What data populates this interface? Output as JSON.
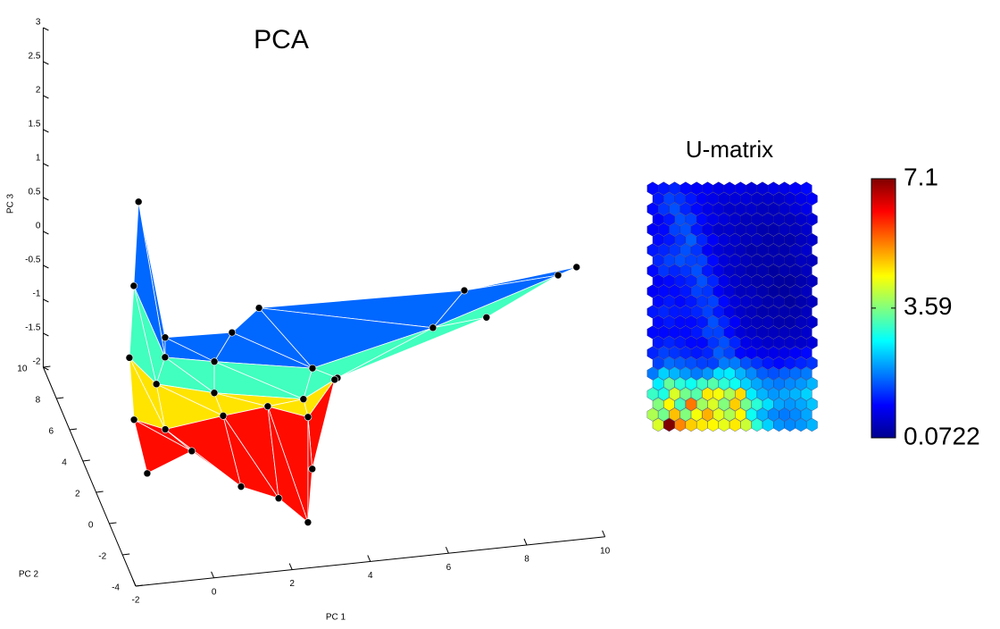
{
  "chart_data": [
    {
      "type": "mesh3d",
      "title": "PCA",
      "xlabel": "PC 1",
      "ylabel": "PC 2",
      "zlabel": "PC 3",
      "xlim": [
        -2,
        10
      ],
      "ylim": [
        -4,
        10
      ],
      "zlim": [
        -2,
        3
      ],
      "xticks": [
        -2,
        0,
        2,
        4,
        6,
        8,
        10
      ],
      "yticks": [
        -4,
        -2,
        0,
        2,
        4,
        6,
        8,
        10
      ],
      "zticks": [
        -2,
        -1.5,
        -1,
        -0.5,
        0,
        0.5,
        1,
        1.5,
        2,
        2.5,
        3
      ],
      "colormap": "jet",
      "nodes": {
        "pc1": [
          [
            0.1,
            0.78,
            2.49,
            3.18,
            8.43,
            11.3
          ],
          [
            -0.36,
            0.44,
            1.7,
            4.21,
            7.29,
            10.49
          ],
          [
            -0.81,
            -0.12,
            1.36,
            3.64,
            4.51,
            8.32
          ],
          [
            -1.03,
            -0.23,
            1.25,
            2.39,
            3.42,
            4.1
          ],
          [
            -1.03,
            0.11,
            1.37,
            2.33,
            3.08,
            3.19
          ]
        ],
        "pc2": [
          [
            8,
            8,
            8,
            8,
            8,
            8
          ],
          [
            6,
            6,
            6,
            6,
            6,
            6
          ],
          [
            4,
            4,
            4,
            4,
            4,
            4
          ],
          [
            2,
            2,
            2,
            2,
            2,
            2
          ],
          [
            0,
            0,
            0,
            0,
            0,
            0
          ]
        ],
        "pc3": [
          [
            0.77,
            -1.27,
            -1.3,
            -0.98,
            -1.04,
            -0.87
          ],
          [
            0.02,
            -1.08,
            -1.22,
            -1.47,
            -1.06,
            -0.48
          ],
          [
            -0.55,
            -0.98,
            -1.2,
            -1.43,
            -1.17,
            -0.51
          ],
          [
            -0.99,
            -1.18,
            -1.07,
            -1.0,
            -1.22,
            -0.71
          ],
          [
            -1.32,
            -1.06,
            -1.66,
            -1.89,
            -2.29,
            -1.51
          ]
        ]
      }
    },
    {
      "type": "hexmap",
      "title": "U-matrix",
      "colormap": "jet",
      "clim": [
        0.0722,
        7.1
      ],
      "cticks": [
        0.0722,
        3.59,
        7.1
      ],
      "values": [
        [
          1.0,
          1.1,
          1.2,
          1.0,
          0.9,
          0.9,
          0.8,
          0.8,
          0.8,
          0.7,
          0.7,
          0.8,
          0.8,
          0.9,
          1.0
        ],
        [
          1.1,
          1.4,
          1.3,
          1.1,
          0.9,
          0.8,
          0.7,
          0.7,
          0.7,
          0.6,
          0.6,
          0.6,
          0.7,
          0.8,
          0.9
        ],
        [
          1.0,
          1.3,
          1.5,
          1.2,
          1.0,
          0.8,
          0.7,
          0.6,
          0.6,
          0.6,
          0.5,
          0.5,
          0.6,
          0.7,
          0.8
        ],
        [
          0.9,
          1.1,
          1.5,
          1.4,
          1.0,
          0.8,
          0.7,
          0.6,
          0.5,
          0.5,
          0.5,
          0.5,
          0.5,
          0.6,
          0.7
        ],
        [
          0.9,
          1.0,
          1.4,
          1.5,
          1.1,
          0.8,
          0.6,
          0.6,
          0.5,
          0.5,
          0.4,
          0.4,
          0.5,
          0.5,
          0.6
        ],
        [
          1.0,
          1.1,
          1.3,
          1.6,
          1.2,
          0.9,
          0.7,
          0.6,
          0.5,
          0.5,
          0.4,
          0.4,
          0.4,
          0.5,
          0.6
        ],
        [
          1.1,
          1.2,
          1.3,
          1.5,
          1.3,
          0.9,
          0.7,
          0.6,
          0.5,
          0.4,
          0.4,
          0.4,
          0.4,
          0.5,
          0.6
        ],
        [
          1.2,
          1.4,
          1.5,
          1.4,
          1.4,
          1.0,
          0.7,
          0.6,
          0.5,
          0.4,
          0.4,
          0.4,
          0.4,
          0.5,
          0.5
        ],
        [
          1.0,
          1.3,
          1.2,
          1.3,
          1.5,
          1.1,
          0.8,
          0.6,
          0.5,
          0.4,
          0.4,
          0.3,
          0.4,
          0.4,
          0.5
        ],
        [
          0.9,
          1.0,
          1.1,
          1.2,
          1.5,
          1.2,
          0.8,
          0.6,
          0.5,
          0.4,
          0.4,
          0.3,
          0.3,
          0.4,
          0.5
        ],
        [
          0.9,
          1.0,
          1.0,
          1.1,
          1.4,
          1.3,
          0.9,
          0.7,
          0.5,
          0.5,
          0.4,
          0.3,
          0.3,
          0.4,
          0.5
        ],
        [
          1.0,
          1.1,
          1.0,
          1.1,
          1.3,
          1.4,
          1.0,
          0.7,
          0.6,
          0.5,
          0.4,
          0.4,
          0.3,
          0.4,
          0.5
        ],
        [
          1.1,
          1.2,
          1.1,
          1.1,
          1.2,
          1.4,
          1.1,
          0.8,
          0.6,
          0.5,
          0.4,
          0.4,
          0.4,
          0.4,
          0.5
        ],
        [
          1.0,
          1.1,
          1.0,
          1.0,
          1.1,
          1.5,
          1.2,
          0.9,
          0.6,
          0.5,
          0.5,
          0.4,
          0.4,
          0.5,
          0.6
        ],
        [
          1.0,
          1.0,
          1.0,
          1.0,
          1.1,
          1.4,
          1.4,
          1.0,
          0.7,
          0.6,
          0.5,
          0.5,
          0.5,
          0.5,
          0.6
        ],
        [
          1.1,
          1.2,
          1.1,
          1.0,
          1.0,
          1.3,
          1.5,
          1.2,
          0.8,
          0.7,
          0.6,
          0.6,
          0.6,
          0.6,
          0.7
        ],
        [
          1.2,
          1.4,
          1.3,
          1.2,
          1.1,
          1.2,
          1.6,
          1.4,
          1.0,
          0.9,
          0.8,
          0.8,
          0.8,
          0.9,
          1.0
        ],
        [
          1.4,
          1.7,
          1.6,
          1.5,
          1.4,
          1.4,
          1.8,
          1.8,
          1.5,
          1.3,
          1.1,
          1.0,
          1.1,
          1.2,
          1.3
        ],
        [
          1.8,
          2.4,
          2.2,
          2.0,
          1.8,
          2.0,
          2.5,
          2.6,
          2.2,
          1.9,
          1.6,
          1.5,
          1.6,
          1.7,
          1.8
        ],
        [
          2.6,
          3.4,
          3.0,
          2.8,
          3.1,
          3.3,
          3.0,
          2.8,
          2.4,
          2.1,
          1.9,
          1.8,
          1.9,
          2.0,
          2.2
        ],
        [
          3.1,
          2.9,
          4.2,
          3.5,
          3.3,
          4.6,
          4.4,
          3.9,
          4.7,
          2.6,
          2.2,
          2.0,
          2.1,
          2.2,
          2.4
        ],
        [
          3.6,
          4.5,
          3.2,
          5.4,
          3.8,
          4.2,
          3.6,
          4.8,
          3.5,
          3.0,
          2.5,
          2.1,
          2.0,
          2.1,
          2.3
        ],
        [
          3.9,
          3.5,
          4.9,
          3.6,
          4.4,
          5.0,
          4.3,
          3.9,
          4.5,
          2.8,
          2.2,
          1.9,
          1.8,
          1.9,
          2.1
        ],
        [
          4.2,
          7.1,
          5.3,
          4.8,
          4.6,
          4.5,
          4.3,
          4.6,
          4.1,
          3.0,
          2.4,
          2.0,
          1.9,
          2.0,
          2.2
        ]
      ]
    }
  ]
}
